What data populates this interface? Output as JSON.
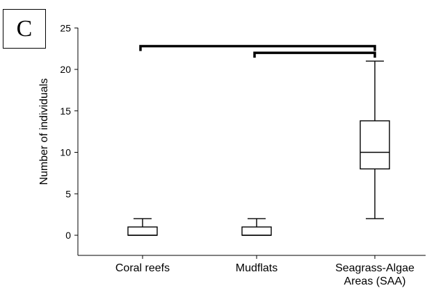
{
  "panel_label": "C",
  "chart_data": {
    "type": "box",
    "title": "",
    "xlabel": "",
    "ylabel": "Number of individuals",
    "ylim": [
      -2.5,
      25
    ],
    "yticks": [
      0,
      5,
      10,
      15,
      20,
      25
    ],
    "categories": [
      "Coral reefs",
      "Mudflats",
      "Seagrass-Algae Areas (SAA)"
    ],
    "category_lines": [
      [
        "Coral reefs"
      ],
      [
        "Mudflats"
      ],
      [
        "Seagrass-Algae",
        "Areas (SAA)"
      ]
    ],
    "boxes": [
      {
        "category": "Coral reefs",
        "min": 0,
        "q1": 0,
        "median": 0,
        "q3": 1,
        "max": 2
      },
      {
        "category": "Mudflats",
        "min": 0,
        "q1": 0,
        "median": 0,
        "q3": 1,
        "max": 2
      },
      {
        "category": "Seagrass-Algae Areas (SAA)",
        "min": 2,
        "q1": 8,
        "median": 10,
        "q3": 13.8,
        "max": 21
      }
    ],
    "significance_brackets": [
      {
        "from": "Coral reefs",
        "to": "Seagrass-Algae Areas (SAA)",
        "y": 22.8
      },
      {
        "from": "Mudflats",
        "to": "Seagrass-Algae Areas (SAA)",
        "y": 22
      }
    ],
    "grid": false,
    "legend": "none",
    "colors": {
      "box_fill": "#ffffff",
      "stroke": "#000000",
      "bracket": "#000000"
    }
  }
}
